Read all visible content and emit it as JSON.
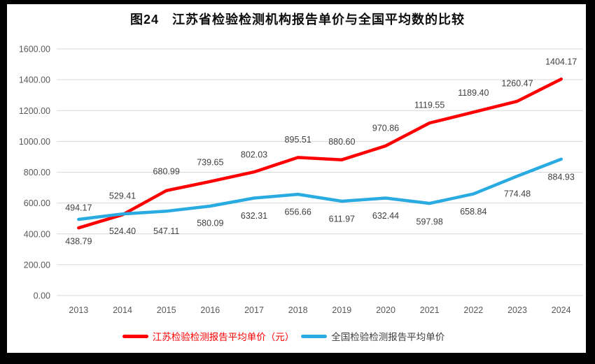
{
  "title": "图24　江苏省检验检测机构报告单价与全国平均数的比较",
  "colors": {
    "jiangsu_line": "#fe0000",
    "national_line": "#29abe2",
    "gridline": "#d9d9d9",
    "tick_text": "#595959",
    "data_label_text": "#404040",
    "frame_border": "#000000",
    "title_text": "#0d0d0d"
  },
  "legend": [
    {
      "label": "江苏检验检测报告平均单价（元）",
      "dash_color": "#fe0000",
      "text_color": "#fe0000"
    },
    {
      "label": "全国检验检测报告平均单价",
      "dash_color": "#29abe2",
      "text_color": "#3f3f3f"
    }
  ],
  "chart_data": {
    "type": "line",
    "title": "图24　江苏省检验检测机构报告单价与全国平均数的比较",
    "categories": [
      "2013",
      "2014",
      "2015",
      "2016",
      "2017",
      "2018",
      "2019",
      "2020",
      "2021",
      "2022",
      "2023",
      "2024"
    ],
    "series": [
      {
        "name": "江苏检验检测报告平均单价（元）",
        "color": "#fe0000",
        "values": [
          438.79,
          524.4,
          680.99,
          739.65,
          802.03,
          895.51,
          880.6,
          970.86,
          1119.55,
          1189.4,
          1260.47,
          1404.17
        ],
        "label_dy": [
          19,
          23,
          -28,
          -28,
          -25,
          -26,
          -26,
          -26,
          -26,
          -28,
          -26,
          -25
        ]
      },
      {
        "name": "全国检验检测报告平均单价",
        "color": "#29abe2",
        "values": [
          494.17,
          529.41,
          547.11,
          580.09,
          632.31,
          656.66,
          611.97,
          632.44,
          597.98,
          658.84,
          774.48,
          884.93
        ],
        "label_dy": [
          -17,
          -26,
          28,
          24,
          25,
          25,
          25,
          25,
          26,
          25,
          25,
          25
        ]
      }
    ],
    "xlabel": "",
    "ylabel": "",
    "ylim": [
      0,
      1600
    ],
    "ytick_step": 200,
    "ytick_labels": [
      "0.00",
      "200.00",
      "400.00",
      "600.00",
      "800.00",
      "1000.00",
      "1200.00",
      "1400.00",
      "1600.00"
    ],
    "grid": true,
    "legend_position": "bottom",
    "data_labels_decimals": 2
  }
}
